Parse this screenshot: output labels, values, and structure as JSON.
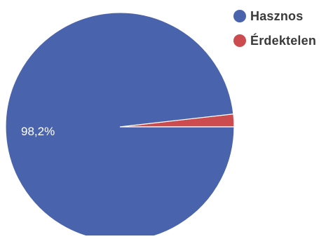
{
  "chart_data": {
    "type": "pie",
    "title": "",
    "slices": [
      {
        "label": "Hasznos",
        "value": 98.2,
        "display": "98,2%",
        "color": "#4a63ad"
      },
      {
        "label": "Érdektelen",
        "value": 1.8,
        "display": "",
        "color": "#cc4b4f"
      }
    ],
    "legend_position": "top-right"
  }
}
